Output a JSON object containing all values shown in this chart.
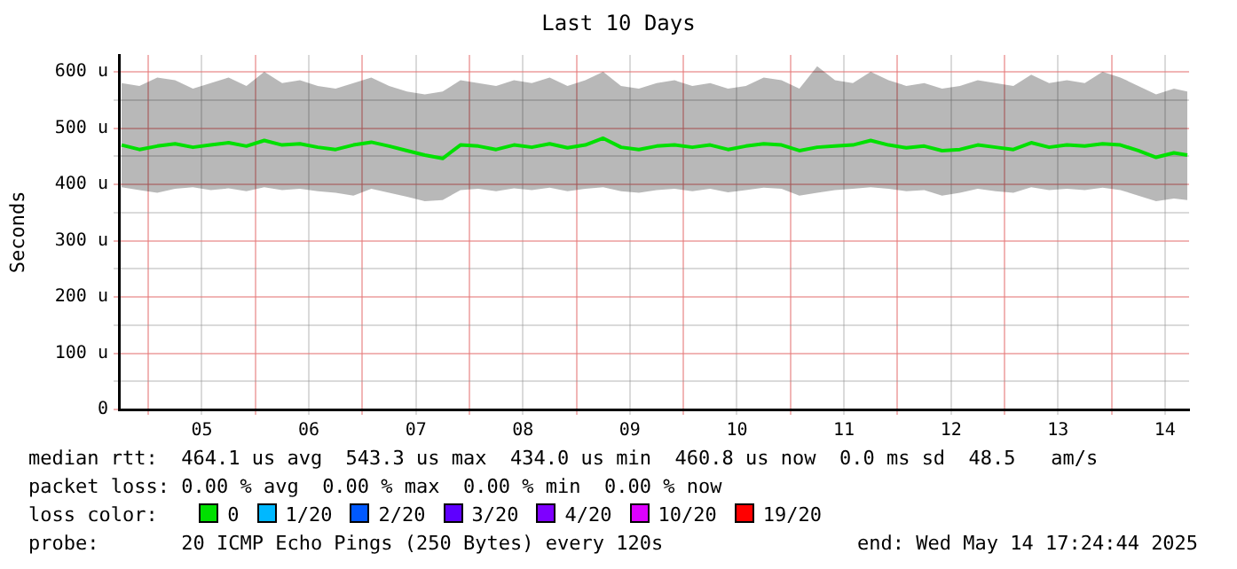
{
  "chart_data": {
    "type": "line",
    "title": "Last 10 Days",
    "ylabel": "Seconds",
    "legend_title": "loss color:",
    "legend": "bottom",
    "grid": true,
    "marker": "none",
    "line_style": "solid",
    "xlim": [
      "2025-05-04T17:24",
      "2025-05-14T17:24"
    ],
    "xticks": [
      {
        "value": "2025-05-05T00:00",
        "label": null
      },
      {
        "value": "2025-05-05T12:00",
        "label": "05"
      },
      {
        "value": "2025-05-06T00:00",
        "label": null
      },
      {
        "value": "2025-05-06T12:00",
        "label": "06"
      },
      {
        "value": "2025-05-07T00:00",
        "label": null
      },
      {
        "value": "2025-05-07T12:00",
        "label": "07"
      },
      {
        "value": "2025-05-08T00:00",
        "label": null
      },
      {
        "value": "2025-05-08T12:00",
        "label": "08"
      },
      {
        "value": "2025-05-09T00:00",
        "label": null
      },
      {
        "value": "2025-05-09T12:00",
        "label": "09"
      },
      {
        "value": "2025-05-10T00:00",
        "label": null
      },
      {
        "value": "2025-05-10T12:00",
        "label": "10"
      },
      {
        "value": "2025-05-11T00:00",
        "label": null
      },
      {
        "value": "2025-05-11T12:00",
        "label": "11"
      },
      {
        "value": "2025-05-12T00:00",
        "label": null
      },
      {
        "value": "2025-05-12T12:00",
        "label": "12"
      },
      {
        "value": "2025-05-13T00:00",
        "label": null
      },
      {
        "value": "2025-05-13T12:00",
        "label": "13"
      },
      {
        "value": "2025-05-14T00:00",
        "label": null
      },
      {
        "value": "2025-05-14T12:00",
        "label": "14"
      }
    ],
    "ylim": [
      0,
      630
    ],
    "yticks": [
      {
        "value": 0,
        "label": "0"
      },
      {
        "value": 50,
        "label": null
      },
      {
        "value": 100,
        "label": "100 u"
      },
      {
        "value": 150,
        "label": null
      },
      {
        "value": 200,
        "label": "200 u"
      },
      {
        "value": 250,
        "label": null
      },
      {
        "value": 300,
        "label": "300 u"
      },
      {
        "value": 350,
        "label": null
      },
      {
        "value": 400,
        "label": "400 u"
      },
      {
        "value": 450,
        "label": null
      },
      {
        "value": 500,
        "label": "500 u"
      },
      {
        "value": 550,
        "label": null
      },
      {
        "value": 600,
        "label": "600 u"
      }
    ],
    "x": [
      "2025-05-04T18:00",
      "2025-05-04T22:00",
      "2025-05-05T02:00",
      "2025-05-05T06:00",
      "2025-05-05T10:00",
      "2025-05-05T14:00",
      "2025-05-05T18:00",
      "2025-05-05T22:00",
      "2025-05-06T02:00",
      "2025-05-06T06:00",
      "2025-05-06T10:00",
      "2025-05-06T14:00",
      "2025-05-06T18:00",
      "2025-05-06T22:00",
      "2025-05-07T02:00",
      "2025-05-07T06:00",
      "2025-05-07T10:00",
      "2025-05-07T14:00",
      "2025-05-07T18:00",
      "2025-05-07T22:00",
      "2025-05-08T02:00",
      "2025-05-08T06:00",
      "2025-05-08T10:00",
      "2025-05-08T14:00",
      "2025-05-08T18:00",
      "2025-05-08T22:00",
      "2025-05-09T02:00",
      "2025-05-09T06:00",
      "2025-05-09T10:00",
      "2025-05-09T14:00",
      "2025-05-09T18:00",
      "2025-05-09T22:00",
      "2025-05-10T02:00",
      "2025-05-10T06:00",
      "2025-05-10T10:00",
      "2025-05-10T14:00",
      "2025-05-10T18:00",
      "2025-05-10T22:00",
      "2025-05-11T02:00",
      "2025-05-11T06:00",
      "2025-05-11T10:00",
      "2025-05-11T14:00",
      "2025-05-11T18:00",
      "2025-05-11T22:00",
      "2025-05-12T02:00",
      "2025-05-12T06:00",
      "2025-05-12T10:00",
      "2025-05-12T14:00",
      "2025-05-12T18:00",
      "2025-05-12T22:00",
      "2025-05-13T02:00",
      "2025-05-13T06:00",
      "2025-05-13T10:00",
      "2025-05-13T14:00",
      "2025-05-13T18:00",
      "2025-05-13T22:00",
      "2025-05-14T02:00",
      "2025-05-14T06:00",
      "2025-05-14T10:00",
      "2025-05-14T14:00",
      "2025-05-14T17:00"
    ],
    "series": [
      {
        "name": "0",
        "color": "#00e000",
        "values": [
          470,
          462,
          468,
          472,
          466,
          470,
          474,
          468,
          478,
          470,
          472,
          466,
          462,
          470,
          475,
          468,
          460,
          452,
          446,
          470,
          468,
          462,
          470,
          466,
          472,
          465,
          470,
          482,
          466,
          462,
          468,
          470,
          466,
          470,
          462,
          468,
          472,
          470,
          460,
          466,
          468,
          470,
          478,
          470,
          465,
          468,
          460,
          462,
          470,
          466,
          462,
          474,
          466,
          470,
          468,
          472,
          470,
          460,
          448,
          456,
          452
        ],
        "lower": [
          395,
          390,
          385,
          392,
          395,
          390,
          393,
          388,
          395,
          390,
          392,
          388,
          385,
          380,
          392,
          385,
          378,
          370,
          372,
          390,
          392,
          388,
          393,
          390,
          394,
          388,
          392,
          395,
          388,
          385,
          390,
          392,
          388,
          392,
          386,
          390,
          394,
          392,
          380,
          385,
          390,
          392,
          395,
          392,
          388,
          390,
          380,
          385,
          392,
          388,
          385,
          395,
          390,
          392,
          390,
          394,
          390,
          380,
          370,
          375,
          372
        ],
        "upper": [
          580,
          575,
          590,
          585,
          570,
          580,
          590,
          575,
          600,
          580,
          585,
          575,
          570,
          580,
          590,
          575,
          565,
          560,
          565,
          585,
          580,
          575,
          585,
          580,
          590,
          575,
          585,
          600,
          575,
          570,
          580,
          585,
          575,
          580,
          570,
          575,
          590,
          585,
          570,
          610,
          585,
          580,
          600,
          585,
          575,
          580,
          570,
          575,
          585,
          580,
          575,
          595,
          580,
          585,
          580,
          600,
          590,
          575,
          560,
          570,
          565
        ]
      },
      {
        "name": "1/20",
        "color": "#00b8ff",
        "values": [
          null,
          null,
          null,
          null,
          null,
          null,
          null,
          null,
          null,
          null,
          null,
          null,
          null,
          null,
          null,
          null,
          null,
          null,
          null,
          null,
          null,
          null,
          null,
          null,
          null,
          null,
          null,
          null,
          null,
          null,
          null,
          null,
          null,
          null,
          null,
          null,
          null,
          null,
          null,
          null,
          null,
          null,
          null,
          null,
          null,
          null,
          null,
          null,
          null,
          null,
          null,
          null,
          null,
          null,
          null,
          null,
          null,
          null,
          null,
          null,
          null
        ]
      },
      {
        "name": "2/20",
        "color": "#0059ff",
        "values": [
          null,
          null,
          null,
          null,
          null,
          null,
          null,
          null,
          null,
          null,
          null,
          null,
          null,
          null,
          null,
          null,
          null,
          null,
          null,
          null,
          null,
          null,
          null,
          null,
          null,
          null,
          null,
          null,
          null,
          null,
          null,
          null,
          null,
          null,
          null,
          null,
          null,
          null,
          null,
          null,
          null,
          null,
          null,
          null,
          null,
          null,
          null,
          null,
          null,
          null,
          null,
          null,
          null,
          null,
          null,
          null,
          null,
          null,
          null,
          null,
          null
        ]
      },
      {
        "name": "3/20",
        "color": "#5e00ff",
        "values": [
          null,
          null,
          null,
          null,
          null,
          null,
          null,
          null,
          null,
          null,
          null,
          null,
          null,
          null,
          null,
          null,
          null,
          null,
          null,
          null,
          null,
          null,
          null,
          null,
          null,
          null,
          null,
          null,
          null,
          null,
          null,
          null,
          null,
          null,
          null,
          null,
          null,
          null,
          null,
          null,
          null,
          null,
          null,
          null,
          null,
          null,
          null,
          null,
          null,
          null,
          null,
          null,
          null,
          null,
          null,
          null,
          null,
          null,
          null,
          null,
          null
        ]
      },
      {
        "name": "4/20",
        "color": "#7e00ff",
        "values": [
          null,
          null,
          null,
          null,
          null,
          null,
          null,
          null,
          null,
          null,
          null,
          null,
          null,
          null,
          null,
          null,
          null,
          null,
          null,
          null,
          null,
          null,
          null,
          null,
          null,
          null,
          null,
          null,
          null,
          null,
          null,
          null,
          null,
          null,
          null,
          null,
          null,
          null,
          null,
          null,
          null,
          null,
          null,
          null,
          null,
          null,
          null,
          null,
          null,
          null,
          null,
          null,
          null,
          null,
          null,
          null,
          null,
          null,
          null,
          null,
          null
        ]
      },
      {
        "name": "10/20",
        "color": "#dd00ff",
        "values": [
          null,
          null,
          null,
          null,
          null,
          null,
          null,
          null,
          null,
          null,
          null,
          null,
          null,
          null,
          null,
          null,
          null,
          null,
          null,
          null,
          null,
          null,
          null,
          null,
          null,
          null,
          null,
          null,
          null,
          null,
          null,
          null,
          null,
          null,
          null,
          null,
          null,
          null,
          null,
          null,
          null,
          null,
          null,
          null,
          null,
          null,
          null,
          null,
          null,
          null,
          null,
          null,
          null,
          null,
          null,
          null,
          null,
          null,
          null,
          null,
          null
        ]
      },
      {
        "name": "19/20",
        "color": "#ff0000",
        "values": [
          null,
          null,
          null,
          null,
          null,
          null,
          null,
          null,
          null,
          null,
          null,
          null,
          null,
          null,
          null,
          null,
          null,
          null,
          null,
          null,
          null,
          null,
          null,
          null,
          null,
          null,
          null,
          null,
          null,
          null,
          null,
          null,
          null,
          null,
          null,
          null,
          null,
          null,
          null,
          null,
          null,
          null,
          null,
          null,
          null,
          null,
          null,
          null,
          null,
          null,
          null,
          null,
          null,
          null,
          null,
          null,
          null,
          null,
          null,
          null,
          null
        ]
      }
    ],
    "annotations": [
      "median rtt:  464.1 us avg  543.3 us max  434.0 us min  460.8 us now  0.0 ms sd  48.5   am/s",
      "packet loss: 0.00 % avg  0.00 % max  0.00 % min  0.00 % now",
      "probe:       20 ICMP Echo Pings (250 Bytes) every 120s",
      "end: Wed May 14 17:24:44 2025"
    ]
  }
}
